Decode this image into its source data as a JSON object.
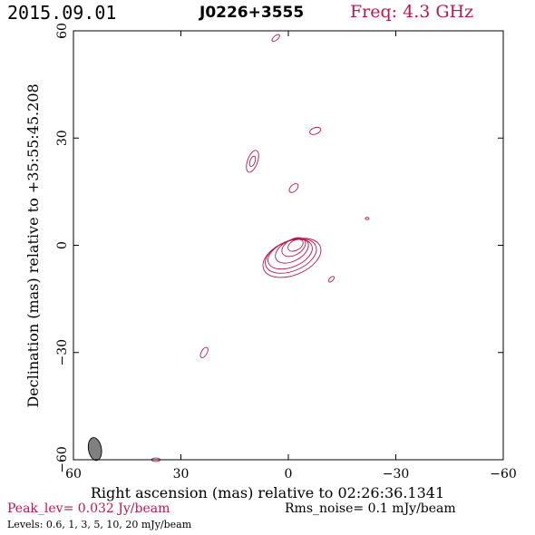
{
  "header": {
    "date": "2015.09.01",
    "source": "J0226+3555",
    "frequency": "Freq: 4.3 GHz"
  },
  "footer": {
    "peak": "Peak_lev=  0.032 Jy/beam",
    "rms": "Rms_noise=   0.1 mJy/beam",
    "levels": "Levels: 0.6,    1,    3,    5,   10,   20 mJy/beam"
  },
  "colors": {
    "contour": "#b8194a",
    "beam": "#808080",
    "axis": "#000000"
  },
  "chart_data": {
    "type": "contour",
    "xlabel": "Right ascension (mas) relative to 02:26:36.1341",
    "ylabel": "Declination (mas) relative to +35:55:45.208",
    "xlim": [
      60,
      -60
    ],
    "ylim": [
      -60,
      60
    ],
    "xticks": [
      60,
      30,
      0,
      -30,
      -60
    ],
    "yticks": [
      -60,
      -30,
      0,
      30,
      60
    ],
    "xtick_labels": [
      "60",
      "30",
      "0",
      "−30",
      "−60"
    ],
    "ytick_labels": [
      "−60",
      "−30",
      "0",
      "30",
      "60"
    ],
    "levels_mjy": [
      0.6,
      1,
      3,
      5,
      10,
      20
    ],
    "peak_jy_per_beam": 0.032,
    "rms_mjy_per_beam": 0.1,
    "beam": {
      "x": 54,
      "y": -57,
      "major_mas": 4.4,
      "minor_mas": 2.6,
      "pa_deg": -10
    },
    "core": {
      "x": 0.5,
      "y": 0,
      "ellipses": [
        {
          "dx": 1.5,
          "dy": 3.5,
          "a": 8.5,
          "b": 4.8,
          "rot": -22
        },
        {
          "dx": 1.2,
          "dy": 3.0,
          "a": 7.5,
          "b": 4.2,
          "rot": -22
        },
        {
          "dx": 1.0,
          "dy": 2.5,
          "a": 6.5,
          "b": 3.6,
          "rot": -22
        },
        {
          "dx": 1.5,
          "dy": 1.5,
          "a": 5.0,
          "b": 2.9,
          "rot": -28
        },
        {
          "dx": 2.0,
          "dy": 0.5,
          "a": 3.6,
          "b": 2.2,
          "rot": -30
        },
        {
          "dx": 2.5,
          "dy": 0.0,
          "a": 2.3,
          "b": 1.4,
          "rot": -30
        }
      ]
    },
    "components": [
      {
        "x": 3.5,
        "y": 58,
        "a": 1.3,
        "b": 0.6,
        "rot": -40
      },
      {
        "x": -7.5,
        "y": 32,
        "a": 1.6,
        "b": 0.9,
        "rot": -20
      },
      {
        "x": 10,
        "y": 23.5,
        "a": 3.2,
        "b": 1.4,
        "rot": -70
      },
      {
        "x": 10,
        "y": 23.5,
        "a": 1.5,
        "b": 0.7,
        "rot": -70
      },
      {
        "x": -1.5,
        "y": 16,
        "a": 1.5,
        "b": 0.9,
        "rot": -45
      },
      {
        "x": -22,
        "y": 7.5,
        "a": 0.5,
        "b": 0.3,
        "rot": 0
      },
      {
        "x": -12,
        "y": -9.5,
        "a": 1.0,
        "b": 0.5,
        "rot": -45
      },
      {
        "x": 23.5,
        "y": -30,
        "a": 1.6,
        "b": 0.8,
        "rot": -60
      },
      {
        "x": 37,
        "y": -60,
        "a": 1.2,
        "b": 0.5,
        "rot": 0
      }
    ]
  }
}
